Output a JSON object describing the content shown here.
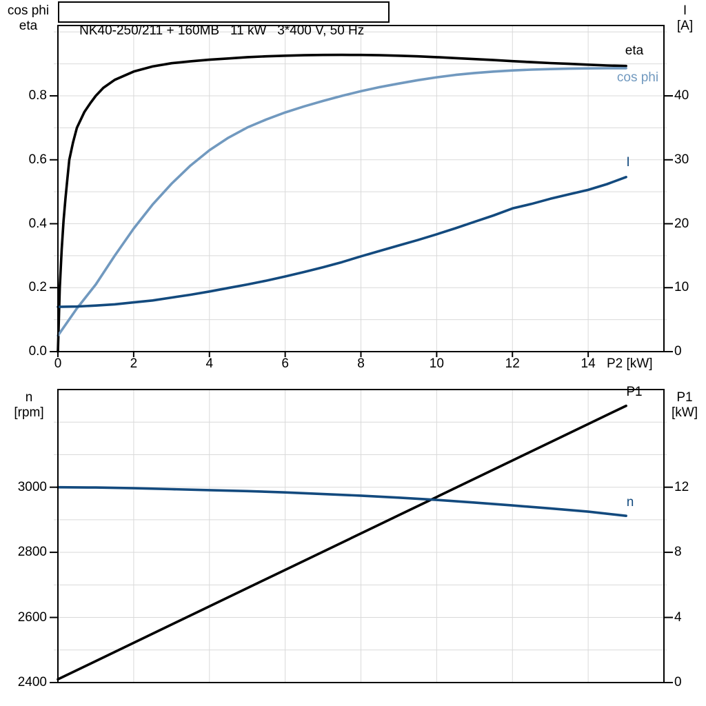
{
  "title": "NK40-250/211 + 160MB   11 kW   3*400 V, 50 Hz",
  "top_chart": {
    "left_axis_title_line1": "cos phi",
    "left_axis_title_line2": "eta",
    "right_axis_title_line1": "I",
    "right_axis_title_line2": "[A]",
    "x_axis_title": "P2 [kW]",
    "curve_label_eta": "eta",
    "curve_label_cos_phi": "cos phi",
    "curve_label_current": "I"
  },
  "bottom_chart": {
    "left_axis_title_line1": "n",
    "left_axis_title_line2": "[rpm]",
    "right_axis_title_line1": "P1",
    "right_axis_title_line2": "[kW]",
    "curve_label_p1": "P1",
    "curve_label_n": "n"
  },
  "colors": {
    "eta": "#000000",
    "cos_phi": "#7199bf",
    "current": "#134a7e",
    "p1": "#000000",
    "n": "#134a7e",
    "grid": "#d9d9d9",
    "frame": "#000000"
  },
  "chart_data": [
    {
      "type": "line",
      "title": "NK40-250/211 + 160MB   11 kW   3*400 V, 50 Hz",
      "xlabel": "P2 [kW]",
      "x_range": [
        0,
        16
      ],
      "x_major_ticks": [
        0,
        2,
        4,
        6,
        8,
        10,
        12,
        14
      ],
      "x_tick_labels": [
        "0",
        "2",
        "4",
        "6",
        "8",
        "10",
        "12",
        "14"
      ],
      "grid_color": "#d9d9d9",
      "left_axis": {
        "label": "cos phi / eta",
        "range": [
          0,
          1.02
        ],
        "grid_step": 0.1,
        "major_ticks": [
          0,
          0.2,
          0.4,
          0.6,
          0.8
        ],
        "major_tick_labels": [
          "0.0",
          "0.2",
          "0.4",
          "0.6",
          "0.8"
        ]
      },
      "right_axis": {
        "label": "I [A]",
        "range": [
          0,
          51
        ],
        "grid_step": 5,
        "major_ticks": [
          0,
          10,
          20,
          30,
          40
        ],
        "major_tick_labels": [
          "0",
          "10",
          "20",
          "30",
          "40"
        ]
      },
      "series": [
        {
          "name": "eta",
          "axis": "left",
          "color": "#000000",
          "points": [
            [
              0,
              0
            ],
            [
              0.05,
              0.2
            ],
            [
              0.1,
              0.32
            ],
            [
              0.15,
              0.41
            ],
            [
              0.2,
              0.48
            ],
            [
              0.25,
              0.54
            ],
            [
              0.3,
              0.6
            ],
            [
              0.4,
              0.655
            ],
            [
              0.5,
              0.7
            ],
            [
              0.7,
              0.75
            ],
            [
              0.85,
              0.776
            ],
            [
              1,
              0.8
            ],
            [
              1.2,
              0.825
            ],
            [
              1.5,
              0.85
            ],
            [
              2,
              0.876
            ],
            [
              2.5,
              0.892
            ],
            [
              3,
              0.902
            ],
            [
              3.5,
              0.908
            ],
            [
              4,
              0.913
            ],
            [
              4.5,
              0.917
            ],
            [
              5,
              0.921
            ],
            [
              5.5,
              0.9235
            ],
            [
              6,
              0.9255
            ],
            [
              6.5,
              0.927
            ],
            [
              7,
              0.928
            ],
            [
              7.5,
              0.9282
            ],
            [
              8,
              0.928
            ],
            [
              8.5,
              0.927
            ],
            [
              9,
              0.9255
            ],
            [
              9.5,
              0.9235
            ],
            [
              10,
              0.921
            ],
            [
              10.5,
              0.918
            ],
            [
              11,
              0.915
            ],
            [
              11.5,
              0.912
            ],
            [
              12,
              0.9085
            ],
            [
              12.5,
              0.9055
            ],
            [
              13,
              0.9025
            ],
            [
              13.5,
              0.9
            ],
            [
              14,
              0.8975
            ],
            [
              14.5,
              0.895
            ],
            [
              15,
              0.8935
            ]
          ]
        },
        {
          "name": "cos phi",
          "axis": "left",
          "color": "#7199bf",
          "points": [
            [
              0,
              0.05
            ],
            [
              0.5,
              0.135
            ],
            [
              1,
              0.21
            ],
            [
              1.5,
              0.3
            ],
            [
              2,
              0.385
            ],
            [
              2.5,
              0.46
            ],
            [
              3,
              0.525
            ],
            [
              3.5,
              0.582
            ],
            [
              4,
              0.63
            ],
            [
              4.5,
              0.669
            ],
            [
              5,
              0.701
            ],
            [
              5.5,
              0.726
            ],
            [
              6,
              0.748
            ],
            [
              6.5,
              0.767
            ],
            [
              7,
              0.784
            ],
            [
              7.5,
              0.8
            ],
            [
              8,
              0.8145
            ],
            [
              8.5,
              0.8275
            ],
            [
              9,
              0.8385
            ],
            [
              9.5,
              0.849
            ],
            [
              10,
              0.858
            ],
            [
              10.5,
              0.8655
            ],
            [
              11,
              0.8715
            ],
            [
              11.5,
              0.876
            ],
            [
              12,
              0.8795
            ],
            [
              12.5,
              0.882
            ],
            [
              13,
              0.8838
            ],
            [
              13.5,
              0.885
            ],
            [
              14,
              0.8858
            ],
            [
              14.5,
              0.8862
            ],
            [
              15,
              0.8865
            ]
          ]
        },
        {
          "name": "I",
          "axis": "right",
          "color": "#134a7e",
          "points": [
            [
              0,
              7.0
            ],
            [
              0.5,
              7.05
            ],
            [
              1,
              7.2
            ],
            [
              1.5,
              7.4
            ],
            [
              2,
              7.7
            ],
            [
              2.5,
              8.0
            ],
            [
              3,
              8.45
            ],
            [
              3.5,
              8.9
            ],
            [
              4,
              9.4
            ],
            [
              4.5,
              9.95
            ],
            [
              5,
              10.5
            ],
            [
              5.5,
              11.1
            ],
            [
              6,
              11.75
            ],
            [
              6.5,
              12.45
            ],
            [
              7,
              13.2
            ],
            [
              7.5,
              14.0
            ],
            [
              8,
              14.9
            ],
            [
              8.5,
              15.75
            ],
            [
              9,
              16.6
            ],
            [
              9.5,
              17.45
            ],
            [
              10,
              18.35
            ],
            [
              10.5,
              19.3
            ],
            [
              11,
              20.3
            ],
            [
              11.5,
              21.3
            ],
            [
              12,
              22.4
            ],
            [
              12.5,
              23.1
            ],
            [
              13,
              23.9
            ],
            [
              13.5,
              24.6
            ],
            [
              14,
              25.3
            ],
            [
              14.5,
              26.2
            ],
            [
              15,
              27.3
            ]
          ]
        }
      ]
    },
    {
      "type": "line",
      "title": "",
      "xlabel": "",
      "x_range": [
        0,
        16
      ],
      "x_major_ticks": [
        2,
        4,
        6,
        8,
        10,
        12,
        14
      ],
      "x_tick_labels": [],
      "grid_color": "#d9d9d9",
      "left_axis": {
        "label": "n [rpm]",
        "range": [
          2400,
          3300
        ],
        "grid_step": 100,
        "major_ticks": [
          2400,
          2600,
          2800,
          3000
        ],
        "major_tick_labels": [
          "2400",
          "2600",
          "2800",
          "3000"
        ]
      },
      "right_axis": {
        "label": "P1 [kW]",
        "range": [
          0,
          18
        ],
        "grid_step": 2,
        "major_ticks": [
          0,
          4,
          8,
          12
        ],
        "major_tick_labels": [
          "0",
          "4",
          "8",
          "12"
        ]
      },
      "series": [
        {
          "name": "P1",
          "axis": "right",
          "color": "#000000",
          "points": [
            [
              0,
              0.2
            ],
            [
              3,
              3.56
            ],
            [
              6,
              6.92
            ],
            [
              9,
              10.28
            ],
            [
              12,
              13.64
            ],
            [
              15,
              17.0
            ]
          ]
        },
        {
          "name": "n",
          "axis": "left",
          "color": "#134a7e",
          "points": [
            [
              0,
              3000
            ],
            [
              1,
              2999
            ],
            [
              2,
              2997
            ],
            [
              3,
              2994
            ],
            [
              4,
              2991
            ],
            [
              5,
              2988
            ],
            [
              6,
              2984
            ],
            [
              7,
              2979
            ],
            [
              8,
              2974
            ],
            [
              9,
              2968
            ],
            [
              10,
              2961
            ],
            [
              11,
              2953
            ],
            [
              12,
              2944
            ],
            [
              13,
              2935
            ],
            [
              14,
              2925
            ],
            [
              15,
              2912
            ]
          ]
        }
      ]
    }
  ]
}
